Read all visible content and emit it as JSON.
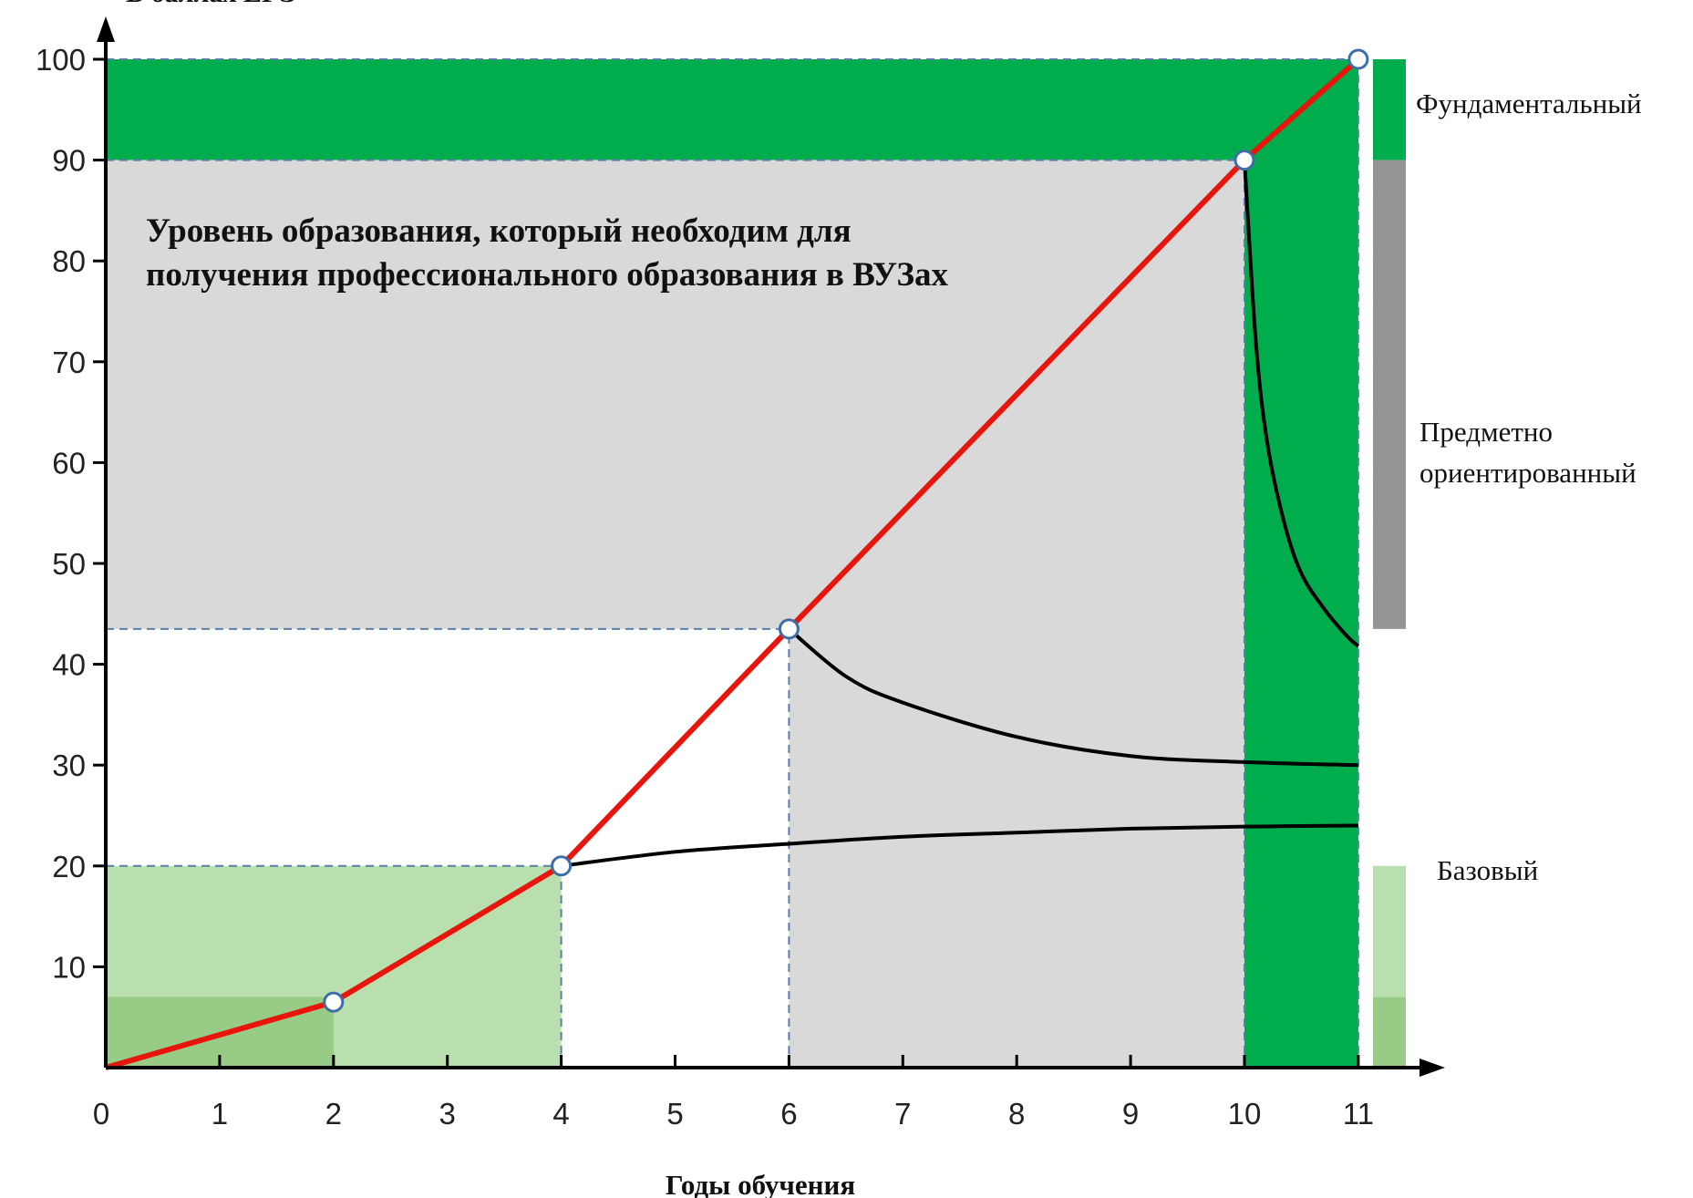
{
  "chart_data": {
    "type": "line",
    "ylabel": "В баллах ЕГЭ",
    "xlabel": "Годы обучения",
    "x_ticks": [
      "0",
      "1",
      "2",
      "3",
      "4",
      "5",
      "6",
      "7",
      "8",
      "9",
      "10",
      "11"
    ],
    "y_ticks": [
      "10",
      "20",
      "30",
      "40",
      "50",
      "60",
      "70",
      "80",
      "90",
      "100"
    ],
    "xlim": [
      0,
      11.8
    ],
    "ylim": [
      0,
      103
    ],
    "annotation": [
      "Уровень образования, который необходим для",
      "получения профессионального образования в ВУЗах"
    ],
    "levels": [
      {
        "label": "Фундаментальный",
        "range": [
          90,
          100
        ],
        "color": "#00ad4c"
      },
      {
        "label_lines": [
          "Предметно",
          "ориентированный"
        ],
        "range": [
          43.5,
          90
        ],
        "color": "#959595"
      },
      {
        "label": "Базовый",
        "range": [
          7,
          20
        ],
        "color": "#b9dfae"
      },
      {
        "range": [
          0,
          7
        ],
        "color": "#98cb85"
      }
    ],
    "main_series": {
      "color": "#e8150d",
      "points": [
        [
          0,
          0
        ],
        [
          2,
          6.5
        ],
        [
          4,
          20
        ],
        [
          6,
          43.5
        ],
        [
          10,
          90
        ],
        [
          11,
          100
        ]
      ]
    },
    "branch_curves": [
      {
        "points": [
          [
            4,
            20
          ],
          [
            5,
            21.4
          ],
          [
            6,
            22.2
          ],
          [
            7,
            22.9
          ],
          [
            8,
            23.3
          ],
          [
            9,
            23.7
          ],
          [
            10,
            23.9
          ],
          [
            11,
            24
          ]
        ]
      },
      {
        "points": [
          [
            6,
            43.5
          ],
          [
            6.5,
            38.8
          ],
          [
            7,
            36.2
          ],
          [
            8,
            32.8
          ],
          [
            9,
            30.9
          ],
          [
            10,
            30.3
          ],
          [
            11,
            30
          ]
        ]
      },
      {
        "points": [
          [
            10,
            90
          ],
          [
            10.1,
            72
          ],
          [
            10.2,
            62
          ],
          [
            10.35,
            54
          ],
          [
            10.5,
            49
          ],
          [
            10.7,
            45.5
          ],
          [
            10.9,
            42.8
          ],
          [
            11,
            41.8
          ]
        ]
      }
    ],
    "shaded_regions": [
      {
        "x": [
          0,
          11
        ],
        "y": [
          90,
          100
        ],
        "color": "#00ad4c"
      },
      {
        "x": [
          0,
          10
        ],
        "y": [
          43.5,
          90
        ],
        "color": "#d9d9d9"
      },
      {
        "x": [
          6,
          10
        ],
        "y": [
          0,
          43.5
        ],
        "color": "#d9d9d9"
      },
      {
        "x": [
          10,
          11
        ],
        "y": [
          0,
          100
        ],
        "color": "#00ad4c"
      },
      {
        "x": [
          0,
          4
        ],
        "y": [
          0,
          20
        ],
        "color": "#b9dfae"
      },
      {
        "x": [
          0,
          2
        ],
        "y": [
          0,
          7
        ],
        "color": "#98cb85"
      }
    ],
    "guide_lines": [
      {
        "x": [
          0,
          11
        ],
        "y": [
          100,
          100
        ]
      },
      {
        "x": [
          0,
          10
        ],
        "y": [
          90,
          90
        ]
      },
      {
        "x": [
          0,
          6
        ],
        "y": [
          43.5,
          43.5
        ]
      },
      {
        "x": [
          0,
          4
        ],
        "y": [
          20,
          20
        ]
      },
      {
        "x": [
          4,
          4
        ],
        "y": [
          0,
          20
        ]
      },
      {
        "x": [
          6,
          6
        ],
        "y": [
          0,
          43.5
        ]
      },
      {
        "x": [
          10,
          10
        ],
        "y": [
          0,
          90
        ]
      },
      {
        "x": [
          11,
          11
        ],
        "y": [
          0,
          100
        ]
      }
    ],
    "grid": false,
    "legend": "right"
  }
}
